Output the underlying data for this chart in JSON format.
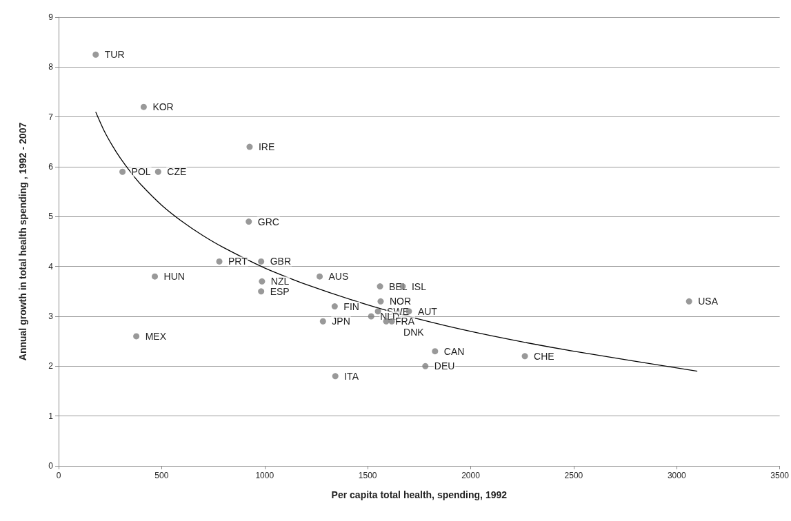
{
  "chart_data": {
    "type": "scatter",
    "xlabel": "Per capita total health, spending, 1992",
    "ylabel": "Annual growth in total health spending , 1992 - 2007",
    "xlim": [
      0,
      3500
    ],
    "xticks": [
      0,
      500,
      1000,
      1500,
      2000,
      2500,
      3000,
      3500
    ],
    "ylim": [
      0,
      9
    ],
    "yticks": [
      0,
      1,
      2,
      3,
      4,
      5,
      6,
      7,
      8,
      9
    ],
    "grid": "y",
    "marker": "circle",
    "series": [
      {
        "color": "#808080",
        "x": [
          180,
          413,
          927,
          310,
          483,
          923,
          780,
          983,
          467,
          1267,
          987,
          983,
          1560,
          1670,
          1563,
          1340,
          1550,
          1700,
          1517,
          1590,
          1617,
          1283,
          3060,
          377,
          1827,
          2263,
          1780,
          1343
        ],
        "values": [
          8.25,
          7.2,
          6.4,
          5.9,
          5.9,
          4.9,
          4.1,
          4.1,
          3.8,
          3.8,
          3.7,
          3.5,
          3.6,
          3.6,
          3.3,
          3.2,
          3.1,
          3.1,
          3.0,
          2.9,
          2.9,
          2.9,
          3.3,
          2.6,
          2.3,
          2.2,
          2.0,
          1.8
        ]
      },
      {
        "type": "line",
        "color": "#000000",
        "marker": "none",
        "x": [
          180,
          220,
          260,
          300,
          350,
          400,
          500,
          600,
          700,
          800,
          1000,
          1200,
          1500,
          1800,
          2100,
          2500,
          3100
        ],
        "values": [
          7.1,
          6.73,
          6.43,
          6.17,
          5.89,
          5.64,
          5.23,
          4.9,
          4.62,
          4.38,
          3.97,
          3.64,
          3.23,
          2.89,
          2.61,
          2.3,
          1.9
        ]
      }
    ],
    "annotations": [
      {
        "text": "TUR",
        "x": 180,
        "y": 8.25
      },
      {
        "text": "KOR",
        "x": 413,
        "y": 7.2
      },
      {
        "text": "IRE",
        "x": 927,
        "y": 6.4
      },
      {
        "text": "POL",
        "x": 310,
        "y": 5.9
      },
      {
        "text": "CZE",
        "x": 483,
        "y": 5.9
      },
      {
        "text": "GRC",
        "x": 923,
        "y": 4.9
      },
      {
        "text": "PRT",
        "x": 780,
        "y": 4.1
      },
      {
        "text": "GBR",
        "x": 983,
        "y": 4.1
      },
      {
        "text": "HUN",
        "x": 467,
        "y": 3.8
      },
      {
        "text": "AUS",
        "x": 1267,
        "y": 3.8
      },
      {
        "text": "NZL",
        "x": 987,
        "y": 3.7
      },
      {
        "text": "ESP",
        "x": 983,
        "y": 3.5
      },
      {
        "text": "BEL",
        "x": 1560,
        "y": 3.6
      },
      {
        "text": "ISL",
        "x": 1670,
        "y": 3.6
      },
      {
        "text": "NOR",
        "x": 1563,
        "y": 3.3
      },
      {
        "text": "FIN",
        "x": 1340,
        "y": 3.2
      },
      {
        "text": "SWE",
        "x": 1550,
        "y": 3.1
      },
      {
        "text": "AUT",
        "x": 1700,
        "y": 3.1
      },
      {
        "text": "NLD",
        "x": 1517,
        "y": 3.0
      },
      {
        "text": "FRA",
        "x": 1590,
        "y": 2.9
      },
      {
        "text": "DNK",
        "x": 1617,
        "y": 2.9
      },
      {
        "text": "JPN",
        "x": 1283,
        "y": 2.9
      },
      {
        "text": "USA",
        "x": 3060,
        "y": 3.3
      },
      {
        "text": "MEX",
        "x": 377,
        "y": 2.6
      },
      {
        "text": "CAN",
        "x": 1827,
        "y": 2.3
      },
      {
        "text": "CHE",
        "x": 2263,
        "y": 2.2
      },
      {
        "text": "DEU",
        "x": 1780,
        "y": 2.0
      },
      {
        "text": "ITA",
        "x": 1343,
        "y": 1.8
      }
    ]
  }
}
